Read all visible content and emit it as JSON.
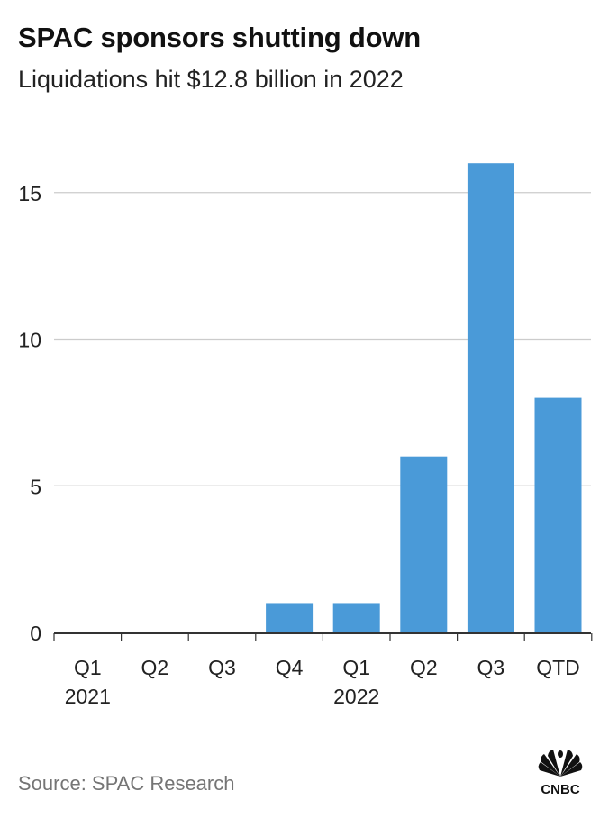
{
  "header": {
    "title": "SPAC sponsors shutting down",
    "subtitle": "Liquidations hit $12.8 billion in 2022"
  },
  "footer": {
    "source": "Source: SPAC Research",
    "logo_text": "CNBC"
  },
  "colors": {
    "bar": "#4a9ad8",
    "grid": "#cccccc",
    "axis": "#333333",
    "text": "#222222"
  },
  "chart_data": {
    "type": "bar",
    "categories": [
      "Q1",
      "Q2",
      "Q3",
      "Q4",
      "Q1",
      "Q2",
      "Q3",
      "QTD"
    ],
    "year_labels": [
      {
        "index": 0,
        "label": "2021"
      },
      {
        "index": 4,
        "label": "2022"
      }
    ],
    "values": [
      0,
      0,
      0,
      1,
      1,
      6,
      16,
      8
    ],
    "yticks": [
      0,
      5,
      10,
      15
    ],
    "ylim": [
      0,
      16
    ],
    "grid": true,
    "xlabel": "",
    "ylabel": ""
  }
}
